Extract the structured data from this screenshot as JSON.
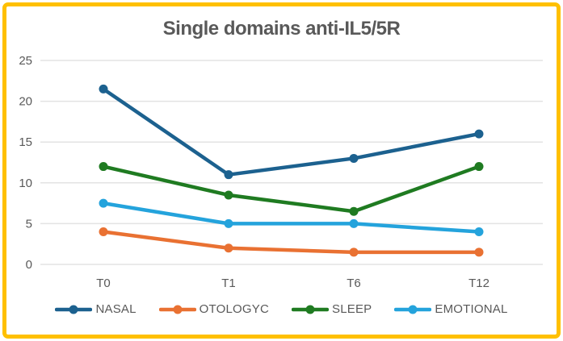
{
  "frame": {
    "border_color": "#FFC000",
    "background_color": "#FFFFFF"
  },
  "chart_data": {
    "type": "line",
    "title": "Single domains anti-IL5/5R",
    "categories": [
      "T0",
      "T1",
      "T6",
      "T12"
    ],
    "series": [
      {
        "name": "NASAL",
        "color": "#1C618F",
        "values": [
          21.5,
          11,
          13,
          16
        ]
      },
      {
        "name": "OTOLOGYC",
        "color": "#E97132",
        "values": [
          4,
          2,
          1.5,
          1.5
        ]
      },
      {
        "name": "SLEEP",
        "color": "#1F7B21",
        "values": [
          12,
          8.5,
          6.5,
          12
        ]
      },
      {
        "name": "EMOTIONAL",
        "color": "#24A3DC",
        "values": [
          7.5,
          5,
          5,
          4
        ]
      }
    ],
    "xlabel": "",
    "ylabel": "",
    "ylim": [
      0,
      25
    ],
    "yticks": [
      0,
      5,
      10,
      15,
      20,
      25
    ],
    "grid": true,
    "gridline_color": "#E3E3E3",
    "text_color": "#595959",
    "legend_position": "bottom",
    "marker_style": "circle"
  }
}
